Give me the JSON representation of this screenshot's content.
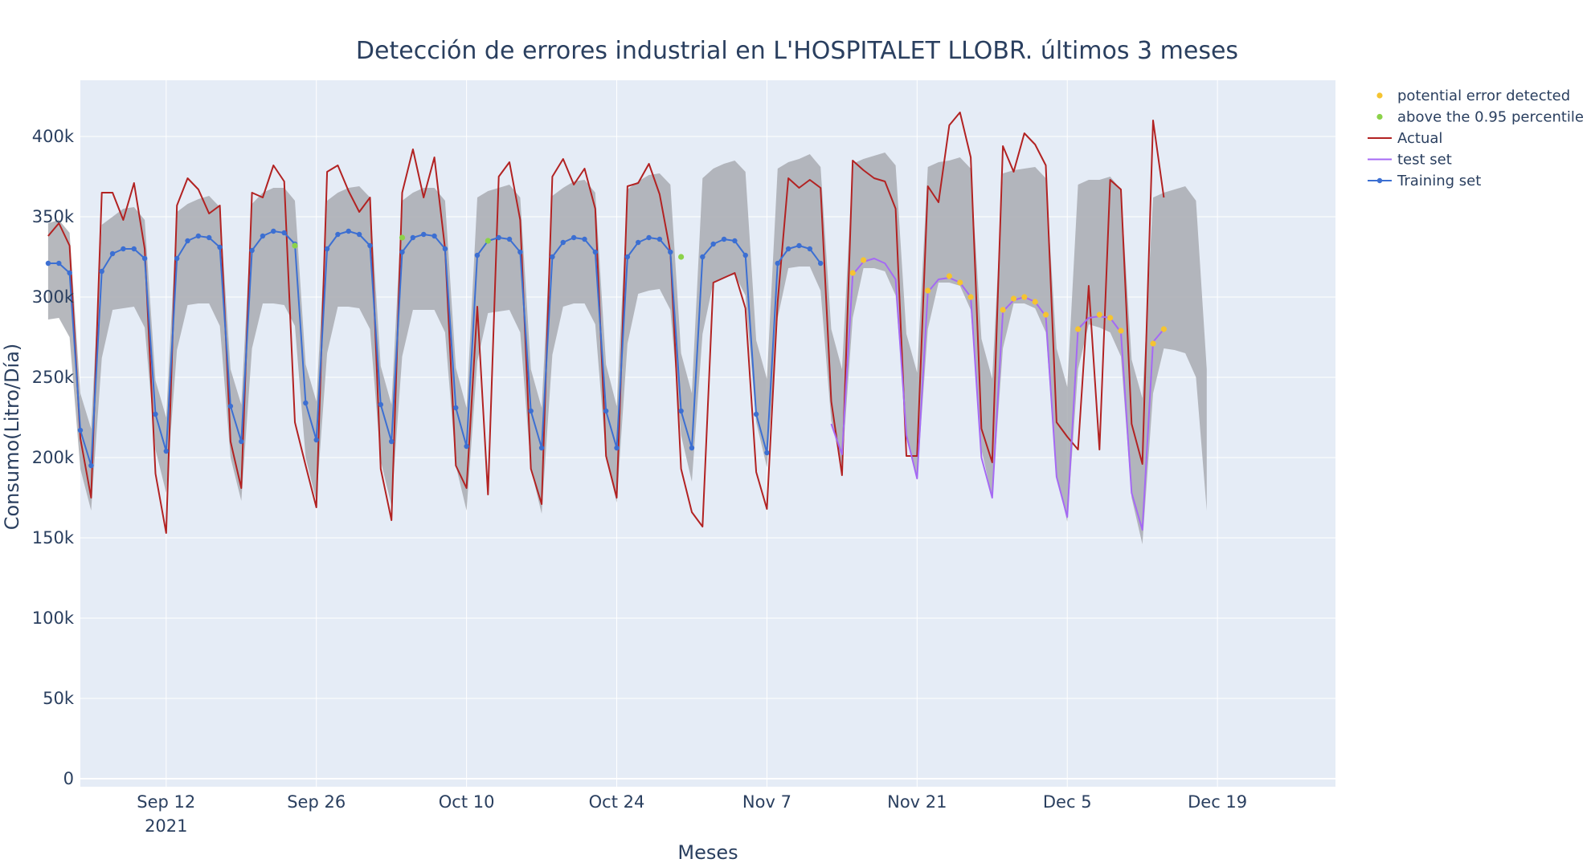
{
  "chart_data": {
    "type": "line",
    "title": "Detección de errores industrial en L'HOSPITALET LLOBR. últimos 3 meses",
    "xlabel": "Meses",
    "ylabel": "Consumo(Litro/Día)",
    "x_range": [
      "2021-08-29",
      "2021-12-26"
    ],
    "xlim": [
      "2021-09-04",
      "2021-12-30"
    ],
    "ylim": [
      -5000,
      435000
    ],
    "y_ticks": [
      0,
      50000,
      100000,
      150000,
      200000,
      250000,
      300000,
      350000,
      400000
    ],
    "y_tick_labels": [
      "0",
      "50k",
      "100k",
      "150k",
      "200k",
      "250k",
      "300k",
      "350k",
      "400k"
    ],
    "x_ticks": [
      "2021-09-12",
      "2021-09-26",
      "2021-10-10",
      "2021-10-24",
      "2021-11-07",
      "2021-11-21",
      "2021-12-05",
      "2021-12-19"
    ],
    "x_tick_labels": [
      "Sep 12",
      "Sep 26",
      "Oct 10",
      "Oct 24",
      "Nov 7",
      "Nov 21",
      "Dec 5",
      "Dec 19"
    ],
    "x_tick_sublabel": "2021",
    "grid": true,
    "legend_position": "top-right",
    "colors": {
      "plot_bg": "#e5ecf6",
      "band": "#a9acb2",
      "actual": "#b22222",
      "test": "#a569f4",
      "training": "#3c6fd2",
      "error": "#f5c431",
      "above": "#8cd24a",
      "text": "#2a3f5f"
    },
    "legend": [
      {
        "name": "potential error detected",
        "style": "marker",
        "color": "#f5c431"
      },
      {
        "name": "above the 0.95 percentile",
        "style": "marker",
        "color": "#8cd24a"
      },
      {
        "name": "Actual",
        "style": "line",
        "color": "#b22222"
      },
      {
        "name": "test set",
        "style": "line",
        "color": "#a569f4"
      },
      {
        "name": "Training set",
        "style": "line-marker",
        "color": "#3c6fd2"
      }
    ],
    "series": [
      {
        "name": "Actual",
        "x": [
          "2021-09-01",
          "2021-09-02",
          "2021-09-03",
          "2021-09-04",
          "2021-09-05",
          "2021-09-06",
          "2021-09-07",
          "2021-09-08",
          "2021-09-09",
          "2021-09-10",
          "2021-09-11",
          "2021-09-12",
          "2021-09-13",
          "2021-09-14",
          "2021-09-15",
          "2021-09-16",
          "2021-09-17",
          "2021-09-18",
          "2021-09-19",
          "2021-09-20",
          "2021-09-21",
          "2021-09-22",
          "2021-09-23",
          "2021-09-24",
          "2021-09-25",
          "2021-09-26",
          "2021-09-27",
          "2021-09-28",
          "2021-09-29",
          "2021-09-30",
          "2021-10-01",
          "2021-10-02",
          "2021-10-03",
          "2021-10-04",
          "2021-10-05",
          "2021-10-06",
          "2021-10-07",
          "2021-10-08",
          "2021-10-09",
          "2021-10-10",
          "2021-10-11",
          "2021-10-12",
          "2021-10-13",
          "2021-10-14",
          "2021-10-15",
          "2021-10-16",
          "2021-10-17",
          "2021-10-18",
          "2021-10-19",
          "2021-10-20",
          "2021-10-21",
          "2021-10-22",
          "2021-10-23",
          "2021-10-24",
          "2021-10-25",
          "2021-10-26",
          "2021-10-27",
          "2021-10-28",
          "2021-10-29",
          "2021-10-30",
          "2021-10-31",
          "2021-11-01",
          "2021-11-02",
          "2021-11-03",
          "2021-11-04",
          "2021-11-05",
          "2021-11-06",
          "2021-11-07",
          "2021-11-08",
          "2021-11-09",
          "2021-11-10",
          "2021-11-11",
          "2021-11-12",
          "2021-11-13",
          "2021-11-14",
          "2021-11-15",
          "2021-11-16",
          "2021-11-17",
          "2021-11-18",
          "2021-11-19",
          "2021-11-20",
          "2021-11-21",
          "2021-11-22",
          "2021-11-23",
          "2021-11-24",
          "2021-11-25",
          "2021-11-26",
          "2021-11-27",
          "2021-11-28",
          "2021-11-29",
          "2021-11-30",
          "2021-12-01",
          "2021-12-02",
          "2021-12-03",
          "2021-12-04",
          "2021-12-05",
          "2021-12-06",
          "2021-12-07",
          "2021-12-08",
          "2021-12-09",
          "2021-12-10",
          "2021-12-11",
          "2021-12-12",
          "2021-12-13",
          "2021-12-14"
        ],
        "values": [
          338000,
          346000,
          332000,
          212000,
          175000,
          365000,
          365000,
          348000,
          371000,
          330000,
          190000,
          153000,
          357000,
          374000,
          367000,
          352000,
          357000,
          210000,
          181000,
          365000,
          362000,
          382000,
          372000,
          222000,
          195000,
          169000,
          378000,
          382000,
          366000,
          353000,
          362000,
          193000,
          161000,
          365000,
          392000,
          362000,
          387000,
          330000,
          195000,
          181000,
          294000,
          177000,
          375000,
          384000,
          348000,
          193000,
          171000,
          375000,
          386000,
          370000,
          380000,
          355000,
          201000,
          175000,
          369000,
          371000,
          383000,
          364000,
          328000,
          193000,
          166000,
          157000,
          309000,
          312000,
          315000,
          293000,
          191000,
          168000,
          297000,
          374000,
          368000,
          373000,
          368000,
          235000,
          189000,
          385000,
          379000,
          374000,
          372000,
          355000,
          201000,
          201000,
          369000,
          359000,
          407000,
          415000,
          387000,
          218000,
          197000,
          394000,
          378000,
          402000,
          395000,
          382000,
          222000,
          213000,
          205000,
          307000,
          205000,
          373000,
          367000,
          221000,
          196000,
          410000,
          362000
        ]
      },
      {
        "name": "test set",
        "x": [
          "2021-11-13",
          "2021-11-14",
          "2021-11-15",
          "2021-11-16",
          "2021-11-17",
          "2021-11-18",
          "2021-11-19",
          "2021-11-20",
          "2021-11-21",
          "2021-11-22",
          "2021-11-23",
          "2021-11-24",
          "2021-11-25",
          "2021-11-26",
          "2021-11-27",
          "2021-11-28",
          "2021-11-29",
          "2021-11-30",
          "2021-12-01",
          "2021-12-02",
          "2021-12-03",
          "2021-12-04",
          "2021-12-05",
          "2021-12-06",
          "2021-12-07",
          "2021-12-08",
          "2021-12-09",
          "2021-12-10",
          "2021-12-11",
          "2021-12-12",
          "2021-12-13",
          "2021-12-14"
        ],
        "values": [
          221000,
          202000,
          314000,
          322000,
          324000,
          321000,
          311000,
          214000,
          187000,
          303000,
          311000,
          312000,
          309000,
          300000,
          200000,
          175000,
          291000,
          298000,
          300000,
          297000,
          288000,
          188000,
          163000,
          280000,
          287000,
          288000,
          287000,
          278000,
          178000,
          155000,
          272000,
          280000
        ]
      },
      {
        "name": "Training set",
        "x": [
          "2021-09-01",
          "2021-09-02",
          "2021-09-03",
          "2021-09-04",
          "2021-09-05",
          "2021-09-06",
          "2021-09-07",
          "2021-09-08",
          "2021-09-09",
          "2021-09-10",
          "2021-09-11",
          "2021-09-12",
          "2021-09-13",
          "2021-09-14",
          "2021-09-15",
          "2021-09-16",
          "2021-09-17",
          "2021-09-18",
          "2021-09-19",
          "2021-09-20",
          "2021-09-21",
          "2021-09-22",
          "2021-09-23",
          "2021-09-24",
          "2021-09-25",
          "2021-09-26",
          "2021-09-27",
          "2021-09-28",
          "2021-09-29",
          "2021-09-30",
          "2021-10-01",
          "2021-10-02",
          "2021-10-03",
          "2021-10-04",
          "2021-10-05",
          "2021-10-06",
          "2021-10-07",
          "2021-10-08",
          "2021-10-09",
          "2021-10-10",
          "2021-10-11",
          "2021-10-12",
          "2021-10-13",
          "2021-10-14",
          "2021-10-15",
          "2021-10-16",
          "2021-10-17",
          "2021-10-18",
          "2021-10-19",
          "2021-10-20",
          "2021-10-21",
          "2021-10-22",
          "2021-10-23",
          "2021-10-24",
          "2021-10-25",
          "2021-10-26",
          "2021-10-27",
          "2021-10-28",
          "2021-10-29",
          "2021-10-30",
          "2021-10-31",
          "2021-11-01",
          "2021-11-02",
          "2021-11-03",
          "2021-11-04",
          "2021-11-05",
          "2021-11-06",
          "2021-11-07",
          "2021-11-08",
          "2021-11-09",
          "2021-11-10",
          "2021-11-11",
          "2021-11-12"
        ],
        "values": [
          321000,
          321000,
          315000,
          217000,
          195000,
          316000,
          327000,
          330000,
          330000,
          324000,
          227000,
          204000,
          324000,
          335000,
          338000,
          337000,
          331000,
          232000,
          210000,
          329000,
          338000,
          341000,
          340000,
          333000,
          234000,
          211000,
          330000,
          339000,
          341000,
          339000,
          332000,
          233000,
          210000,
          328000,
          337000,
          339000,
          338000,
          330000,
          231000,
          207000,
          326000,
          335000,
          337000,
          336000,
          328000,
          229000,
          206000,
          325000,
          334000,
          337000,
          336000,
          328000,
          229000,
          206000,
          325000,
          334000,
          337000,
          336000,
          328000,
          229000,
          206000,
          325000,
          333000,
          336000,
          335000,
          326000,
          227000,
          203000,
          321000,
          330000,
          332000,
          330000,
          321000
        ]
      },
      {
        "name": "potential error detected",
        "x": [
          "2021-11-15",
          "2021-11-16",
          "2021-11-22",
          "2021-11-24",
          "2021-11-25",
          "2021-11-26",
          "2021-11-29",
          "2021-11-30",
          "2021-12-01",
          "2021-12-02",
          "2021-12-03",
          "2021-12-06",
          "2021-12-08",
          "2021-12-09",
          "2021-12-10",
          "2021-12-13",
          "2021-12-14"
        ],
        "values": [
          315000,
          323000,
          304000,
          313000,
          309000,
          300000,
          292000,
          299000,
          300000,
          297000,
          289000,
          280000,
          289000,
          287000,
          279000,
          271000,
          280000
        ]
      },
      {
        "name": "above the 0.95 percentile",
        "x": [
          "2021-09-24",
          "2021-10-04",
          "2021-10-12",
          "2021-10-30"
        ],
        "values": [
          332000,
          337000,
          335000,
          325000
        ]
      },
      {
        "name": "interval band",
        "x": [
          "2021-09-01",
          "2021-09-02",
          "2021-09-03",
          "2021-09-04",
          "2021-09-05",
          "2021-09-06",
          "2021-09-07",
          "2021-09-08",
          "2021-09-09",
          "2021-09-10",
          "2021-09-11",
          "2021-09-12",
          "2021-09-13",
          "2021-09-14",
          "2021-09-15",
          "2021-09-16",
          "2021-09-17",
          "2021-09-18",
          "2021-09-19",
          "2021-09-20",
          "2021-09-21",
          "2021-09-22",
          "2021-09-23",
          "2021-09-24",
          "2021-09-25",
          "2021-09-26",
          "2021-09-27",
          "2021-09-28",
          "2021-09-29",
          "2021-09-30",
          "2021-10-01",
          "2021-10-02",
          "2021-10-03",
          "2021-10-04",
          "2021-10-05",
          "2021-10-06",
          "2021-10-07",
          "2021-10-08",
          "2021-10-09",
          "2021-10-10",
          "2021-10-11",
          "2021-10-12",
          "2021-10-13",
          "2021-10-14",
          "2021-10-15",
          "2021-10-16",
          "2021-10-17",
          "2021-10-18",
          "2021-10-19",
          "2021-10-20",
          "2021-10-21",
          "2021-10-22",
          "2021-10-23",
          "2021-10-24",
          "2021-10-25",
          "2021-10-26",
          "2021-10-27",
          "2021-10-28",
          "2021-10-29",
          "2021-10-30",
          "2021-10-31",
          "2021-11-01",
          "2021-11-02",
          "2021-11-03",
          "2021-11-04",
          "2021-11-05",
          "2021-11-06",
          "2021-11-07",
          "2021-11-08",
          "2021-11-09",
          "2021-11-10",
          "2021-11-11",
          "2021-11-12",
          "2021-11-13",
          "2021-11-14",
          "2021-11-15",
          "2021-11-16",
          "2021-11-17",
          "2021-11-18",
          "2021-11-19",
          "2021-11-20",
          "2021-11-21",
          "2021-11-22",
          "2021-11-23",
          "2021-11-24",
          "2021-11-25",
          "2021-11-26",
          "2021-11-27",
          "2021-11-28",
          "2021-11-29",
          "2021-11-30",
          "2021-12-01",
          "2021-12-02",
          "2021-12-03",
          "2021-12-04",
          "2021-12-05",
          "2021-12-06",
          "2021-12-07",
          "2021-12-08",
          "2021-12-09",
          "2021-12-10",
          "2021-12-11",
          "2021-12-12",
          "2021-12-13",
          "2021-12-14",
          "2021-12-15",
          "2021-12-16",
          "2021-12-17",
          "2021-12-18"
        ],
        "upper": [
          346000,
          348000,
          340000,
          240000,
          218000,
          345000,
          350000,
          355000,
          356000,
          348000,
          248000,
          225000,
          353000,
          358000,
          361000,
          363000,
          356000,
          255000,
          233000,
          358000,
          365000,
          368000,
          368000,
          360000,
          258000,
          235000,
          360000,
          365000,
          368000,
          369000,
          362000,
          257000,
          233000,
          360000,
          365000,
          368000,
          368000,
          360000,
          256000,
          231000,
          362000,
          366000,
          368000,
          370000,
          362000,
          255000,
          231000,
          363000,
          368000,
          372000,
          373000,
          365000,
          258000,
          232000,
          367000,
          372000,
          376000,
          377000,
          370000,
          265000,
          240000,
          374000,
          380000,
          383000,
          385000,
          378000,
          273000,
          249000,
          380000,
          384000,
          386000,
          389000,
          381000,
          280000,
          255000,
          383000,
          386000,
          388000,
          390000,
          382000,
          277000,
          253000,
          381000,
          384000,
          385000,
          387000,
          380000,
          274000,
          249000,
          377000,
          379000,
          380000,
          381000,
          374000,
          268000,
          244000,
          370000,
          373000,
          373000,
          375000,
          367000,
          261000,
          237000,
          362000,
          365000,
          367000,
          369000,
          360000,
          255000
        ],
        "lower": [
          286000,
          287000,
          275000,
          193000,
          167000,
          262000,
          292000,
          293000,
          294000,
          281000,
          205000,
          178000,
          267000,
          295000,
          296000,
          296000,
          282000,
          200000,
          173000,
          268000,
          296000,
          296000,
          295000,
          282000,
          200000,
          173000,
          265000,
          294000,
          294000,
          293000,
          280000,
          198000,
          170000,
          263000,
          292000,
          292000,
          292000,
          278000,
          195000,
          167000,
          260000,
          290000,
          291000,
          292000,
          278000,
          193000,
          165000,
          264000,
          294000,
          296000,
          296000,
          283000,
          200000,
          172000,
          271000,
          302000,
          304000,
          305000,
          292000,
          214000,
          185000,
          277000,
          309000,
          312000,
          314000,
          301000,
          222000,
          194000,
          287000,
          318000,
          319000,
          319000,
          304000,
          223000,
          194000,
          287000,
          318000,
          318000,
          316000,
          301000,
          216000,
          186000,
          280000,
          309000,
          309000,
          307000,
          292000,
          205000,
          175000,
          268000,
          296000,
          296000,
          293000,
          278000,
          189000,
          160000,
          255000,
          283000,
          281000,
          278000,
          263000,
          175000,
          146000,
          240000,
          268000,
          267000,
          265000,
          250000,
          167000
        ]
      }
    ]
  }
}
